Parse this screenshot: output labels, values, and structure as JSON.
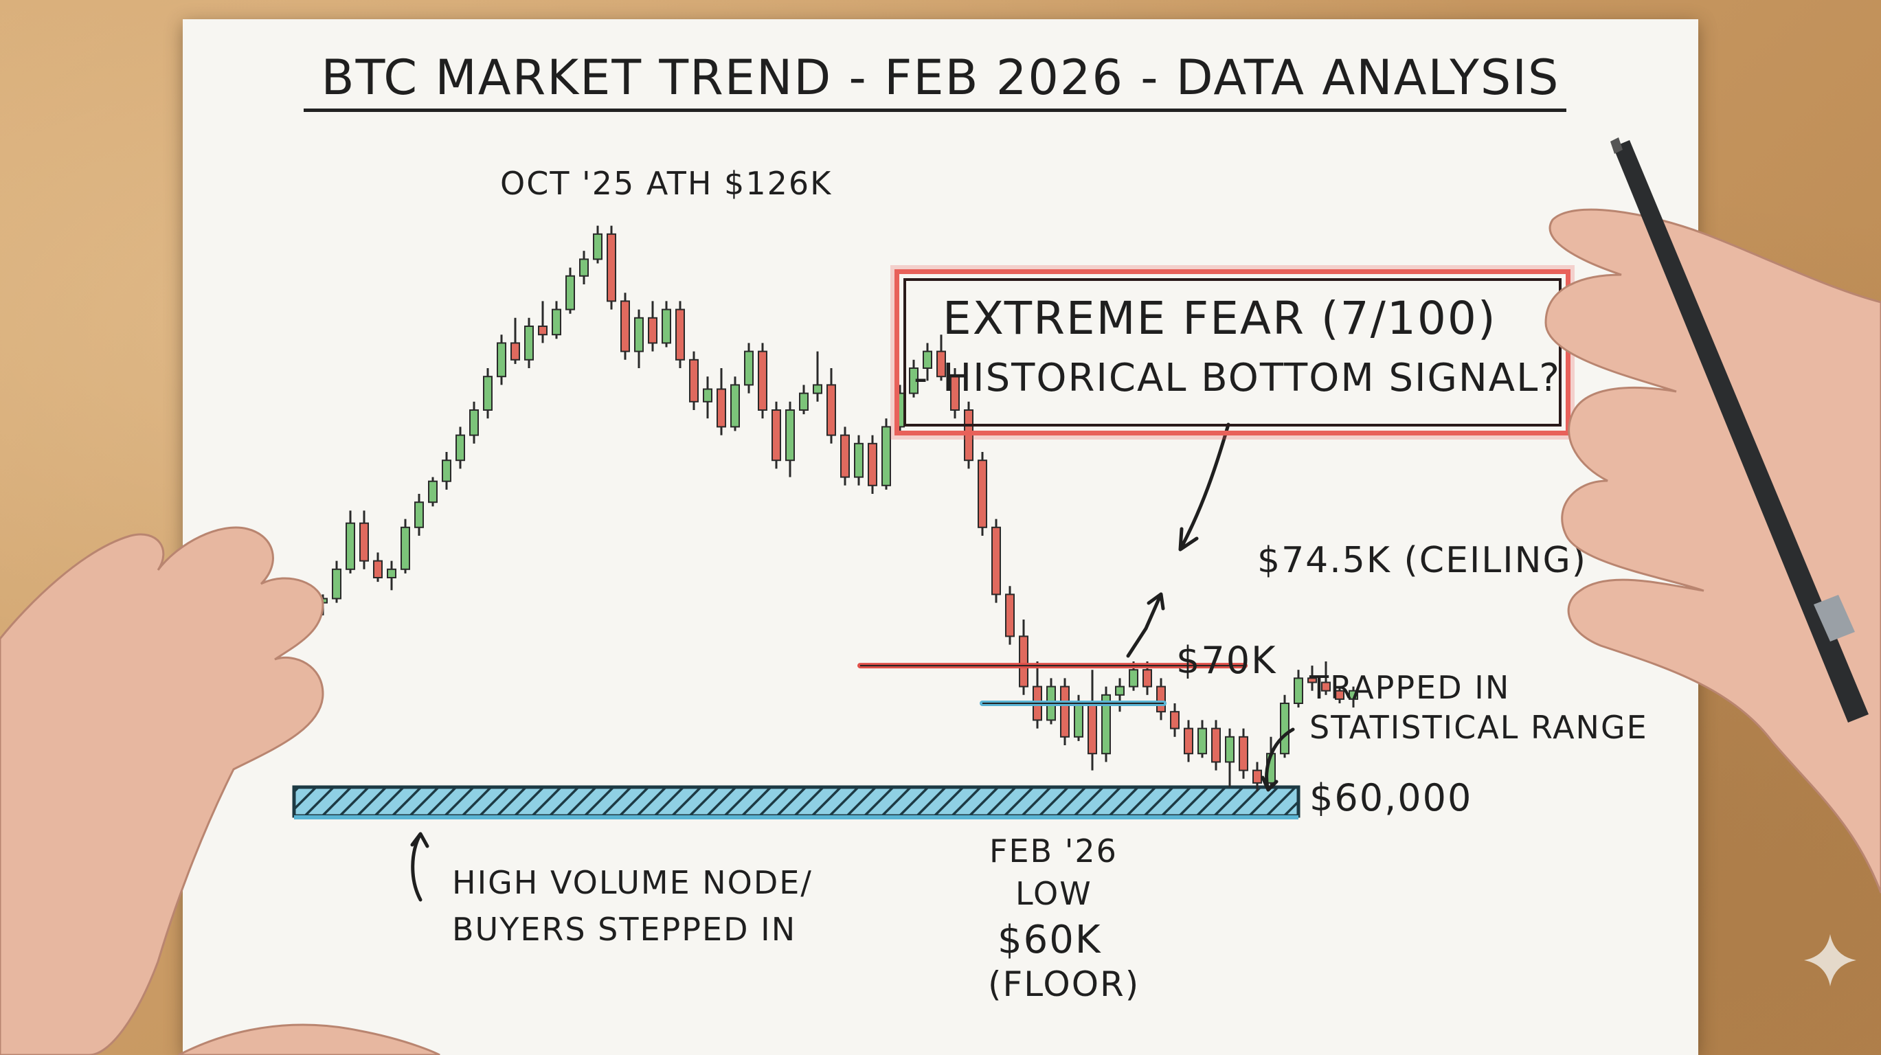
{
  "title": "BTC MARKET TREND - FEB 2026 - DATA ANALYSIS",
  "annotations": {
    "ath": "OCT '25 ATH $126K",
    "fear_line1": "EXTREME FEAR (7/100)",
    "fear_line2": "- HISTORICAL BOTTOM SIGNAL?",
    "ceiling": "$74.5K (CEILING)",
    "k70": "$70K",
    "trapped_line1": "TRAPPED IN",
    "trapped_line2": "STATISTICAL RANGE",
    "floor_price": "$60,000",
    "hvn_line1": "HIGH VOLUME NODE/",
    "hvn_line2": "BUYERS STEPPED IN",
    "low_line1": "FEB '26",
    "low_line2": "LOW",
    "low_line3": "$60K",
    "low_line4": "(FLOOR)"
  },
  "colors": {
    "bull": "#7cc47a",
    "bear": "#e06a5e",
    "ceiling_line": "#e0504a",
    "support_line": "#5ab4d4",
    "ink": "#1f1f1f"
  },
  "chart_data": {
    "type": "candlestick",
    "title": "BTC MARKET TREND - FEB 2026 - DATA ANALYSIS",
    "ylim": [
      58,
      132
    ],
    "levels": [
      {
        "label": "$74.5K (CEILING)",
        "value": 74.5
      },
      {
        "label": "$70K",
        "value": 70
      },
      {
        "label": "$60,000",
        "value": 60
      }
    ],
    "candles": [
      [
        82,
        83,
        80.5,
        82.5
      ],
      [
        82.5,
        87,
        82,
        86
      ],
      [
        86,
        93,
        85.5,
        91.5
      ],
      [
        91.5,
        93,
        86,
        87
      ],
      [
        87,
        88,
        84.5,
        85
      ],
      [
        85,
        87,
        83.5,
        86
      ],
      [
        86,
        92,
        85.5,
        91
      ],
      [
        91,
        95,
        90,
        94
      ],
      [
        94,
        97,
        93.5,
        96.5
      ],
      [
        96.5,
        100,
        95.5,
        99
      ],
      [
        99,
        103,
        98,
        102
      ],
      [
        102,
        106,
        101,
        105
      ],
      [
        105,
        110,
        104,
        109
      ],
      [
        109,
        114,
        108,
        113
      ],
      [
        113,
        116,
        110.5,
        111
      ],
      [
        111,
        116,
        110,
        115
      ],
      [
        115,
        118,
        113,
        114
      ],
      [
        114,
        118,
        113.5,
        117
      ],
      [
        117,
        122,
        116.5,
        121
      ],
      [
        121,
        124,
        120,
        123
      ],
      [
        123,
        127,
        122.5,
        126
      ],
      [
        126,
        127,
        117,
        118
      ],
      [
        118,
        119,
        111,
        112
      ],
      [
        112,
        117,
        110,
        116
      ],
      [
        116,
        118,
        112,
        113
      ],
      [
        113,
        118,
        112.5,
        117
      ],
      [
        117,
        118,
        110,
        111
      ],
      [
        111,
        112,
        105,
        106
      ],
      [
        106,
        109,
        104,
        107.5
      ],
      [
        107.5,
        110,
        102,
        103
      ],
      [
        103,
        109,
        102.5,
        108
      ],
      [
        108,
        113,
        107,
        112
      ],
      [
        112,
        113,
        104,
        105
      ],
      [
        105,
        106,
        98,
        99
      ],
      [
        99,
        106,
        97,
        105
      ],
      [
        105,
        108,
        104.5,
        107
      ],
      [
        107,
        112,
        106,
        108
      ],
      [
        108,
        110,
        101,
        102
      ],
      [
        102,
        103,
        96,
        97
      ],
      [
        97,
        102,
        96,
        101
      ],
      [
        101,
        102,
        95,
        96
      ],
      [
        96,
        104,
        95.5,
        103
      ],
      [
        103,
        108,
        102.5,
        107
      ],
      [
        107,
        111,
        106.5,
        110
      ],
      [
        110,
        113,
        108.5,
        112
      ],
      [
        112,
        114,
        108.5,
        109
      ],
      [
        109,
        110,
        104,
        105
      ],
      [
        105,
        106,
        98,
        99
      ],
      [
        99,
        100,
        90,
        91
      ],
      [
        91,
        92,
        82,
        83
      ],
      [
        83,
        84,
        77,
        78
      ],
      [
        78,
        80,
        71,
        72
      ],
      [
        72,
        75,
        67,
        68
      ],
      [
        68,
        73,
        67.5,
        72
      ],
      [
        72,
        73,
        65,
        66
      ],
      [
        66,
        71,
        65.5,
        70
      ],
      [
        70,
        74,
        62,
        64
      ],
      [
        64,
        72,
        63,
        71
      ],
      [
        71,
        73,
        69,
        72
      ],
      [
        72,
        75,
        71.5,
        74
      ],
      [
        74,
        75,
        71,
        72
      ],
      [
        72,
        73,
        68,
        69
      ],
      [
        69,
        70,
        66,
        67
      ],
      [
        67,
        68,
        63,
        64
      ],
      [
        64,
        68,
        63.5,
        67
      ],
      [
        67,
        68,
        62,
        63
      ],
      [
        63,
        67,
        60,
        66
      ],
      [
        66,
        67,
        61,
        62
      ],
      [
        62,
        63,
        59.5,
        60.5
      ],
      [
        60.5,
        66,
        60,
        64
      ],
      [
        64,
        71,
        63.5,
        70
      ],
      [
        70,
        74,
        69.5,
        73
      ],
      [
        73,
        74.5,
        71.5,
        72.5
      ],
      [
        72.5,
        75,
        71,
        71.5
      ],
      [
        71.5,
        72,
        70,
        70.5
      ],
      [
        70.5,
        72,
        69.5,
        71.5
      ]
    ]
  }
}
